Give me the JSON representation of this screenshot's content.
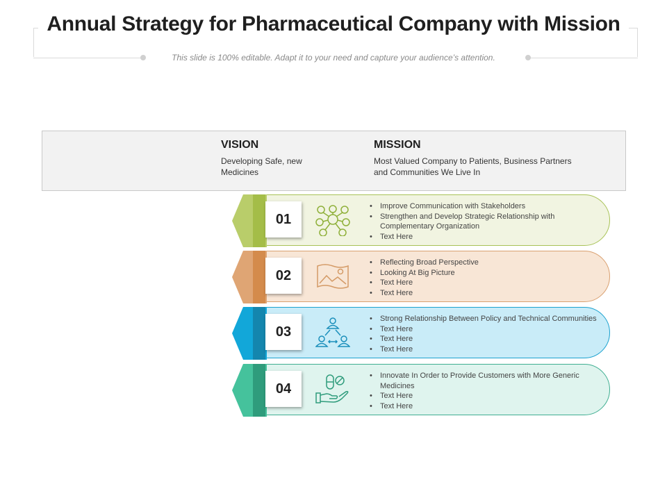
{
  "header": {
    "title": "Annual Strategy for Pharmaceutical Company with Mission",
    "subtitle": "This slide is 100% editable. Adapt it to your need and capture your audience’s attention."
  },
  "vision": {
    "heading": "VISION",
    "text": "Developing Safe, new Medicines"
  },
  "mission": {
    "heading": "MISSION",
    "text": "Most Valued Company to Patients, Business Partners and Communities We Live In"
  },
  "rows": [
    {
      "number": "01",
      "icon": "network-people-icon",
      "colors": {
        "fill": "#f1f4e1",
        "border": "#a8c256",
        "arrow": "#b9cd6a",
        "band": "#a4bd48",
        "icon": "#8fb03a"
      },
      "bullets": [
        "Improve Communication with Stakeholders",
        "Strengthen and Develop Strategic Relationship with Complementary Organization",
        "Text Here"
      ]
    },
    {
      "number": "02",
      "icon": "picture-frame-icon",
      "colors": {
        "fill": "#f8e6d6",
        "border": "#d9a070",
        "arrow": "#dfa574",
        "band": "#d48b4c",
        "icon": "#d49a66"
      },
      "bullets": [
        "Reflecting Broad Perspective",
        "Looking At Big Picture",
        "Text Here",
        "Text Here"
      ]
    },
    {
      "number": "03",
      "icon": "team-connection-icon",
      "colors": {
        "fill": "#c9ecf8",
        "border": "#1aa1cf",
        "arrow": "#12a7d9",
        "band": "#1486ae",
        "icon": "#1a8fbb"
      },
      "bullets": [
        "Strong Relationship  Between Policy and Technical Communities",
        "Text Here",
        "Text Here",
        "Text Here"
      ]
    },
    {
      "number": "04",
      "icon": "hand-with-pills-icon",
      "colors": {
        "fill": "#dff4ee",
        "border": "#3fae91",
        "arrow": "#45c29c",
        "band": "#2f9c7c",
        "icon": "#2f9c7c"
      },
      "bullets": [
        "Innovate In Order to Provide Customers with More Generic Medicines",
        "Text Here",
        "Text Here"
      ]
    }
  ]
}
